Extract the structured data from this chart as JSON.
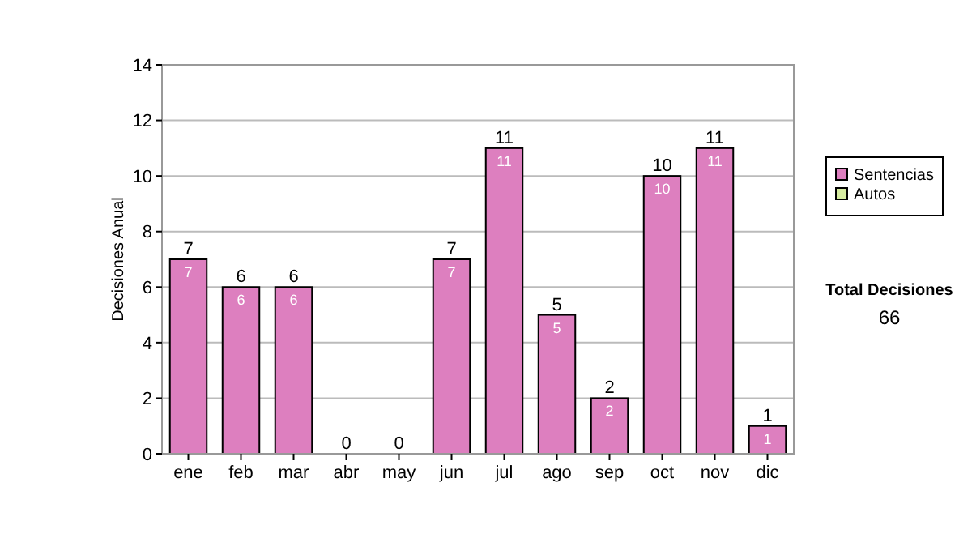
{
  "chart_data": {
    "type": "bar",
    "stacked": true,
    "ylabel": "Decisiones Anual",
    "categories": [
      "ene",
      "feb",
      "mar",
      "abr",
      "may",
      "jun",
      "jul",
      "ago",
      "sep",
      "oct",
      "nov",
      "dic"
    ],
    "series": [
      {
        "name": "Sentencias",
        "color": "#dd7fbf",
        "values": [
          7,
          6,
          6,
          0,
          0,
          7,
          11,
          5,
          2,
          10,
          11,
          1
        ],
        "value_labels": [
          "7",
          "6",
          "6",
          null,
          null,
          "7",
          "11",
          "5",
          "2",
          "10",
          "11",
          "1"
        ]
      },
      {
        "name": "Autos",
        "color": "#d6eca0",
        "values": [
          0,
          0,
          0,
          0,
          0,
          0,
          0,
          0,
          0,
          0,
          0,
          0
        ]
      }
    ],
    "totals": [
      "7",
      "6",
      "6",
      "0",
      "0",
      "7",
      "11",
      "5",
      "2",
      "10",
      "11",
      "1"
    ],
    "ylim": [
      0,
      14
    ],
    "yticks": [
      0,
      2,
      4,
      6,
      8,
      10,
      12,
      14
    ],
    "grid": "y",
    "legend": "right",
    "annotations": [
      "Total Decisiones",
      "66"
    ]
  }
}
